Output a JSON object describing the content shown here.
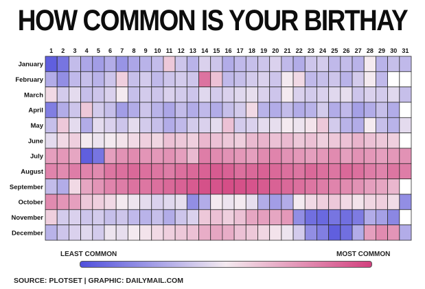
{
  "title": "HOW COMMON IS YOUR BIRTHAY",
  "legend": {
    "low_label": "LEAST COMMON",
    "high_label": "MOST COMMON"
  },
  "footer": {
    "source": "SOURCE: PLOTSET | GRAPHIC: DAILYMAIL.COM"
  },
  "colors": {
    "least": "#5050dc",
    "middle": "#f4eaf0",
    "most": "#d2407e",
    "missing": "#ffffff",
    "grid": "#2b2b2b"
  },
  "chart_data": {
    "type": "heatmap",
    "title": "HOW COMMON IS YOUR BIRTHAY",
    "x": [
      1,
      2,
      3,
      4,
      5,
      6,
      7,
      8,
      9,
      10,
      11,
      12,
      13,
      14,
      15,
      16,
      17,
      18,
      19,
      20,
      21,
      22,
      23,
      24,
      25,
      26,
      27,
      28,
      29,
      30,
      31
    ],
    "y": [
      "January",
      "February",
      "March",
      "April",
      "May",
      "June",
      "July",
      "August",
      "September",
      "October",
      "November",
      "December"
    ],
    "value_scale": "relative commonness, 0 = least common, 1 = most common",
    "values": [
      [
        0.05,
        0.12,
        0.35,
        0.28,
        0.25,
        0.3,
        0.22,
        0.28,
        0.32,
        0.35,
        0.6,
        0.38,
        0.32,
        0.42,
        0.38,
        0.3,
        0.34,
        0.36,
        0.38,
        0.42,
        0.34,
        0.3,
        0.38,
        0.4,
        0.34,
        0.35,
        0.32,
        0.5,
        0.32,
        0.36,
        0.34
      ],
      [
        0.3,
        0.2,
        0.34,
        0.36,
        0.32,
        0.38,
        0.58,
        0.36,
        0.4,
        0.34,
        0.38,
        0.4,
        0.38,
        0.85,
        0.62,
        0.34,
        0.36,
        0.4,
        0.42,
        0.38,
        0.5,
        0.55,
        0.34,
        0.36,
        0.38,
        0.32,
        0.4,
        0.5,
        0.34,
        null,
        null
      ],
      [
        0.55,
        0.4,
        0.45,
        0.36,
        0.38,
        0.42,
        0.5,
        0.36,
        0.4,
        0.38,
        0.42,
        0.4,
        0.38,
        0.44,
        0.4,
        0.42,
        0.44,
        0.46,
        0.42,
        0.38,
        0.5,
        0.42,
        0.4,
        0.42,
        0.44,
        0.46,
        0.38,
        0.42,
        0.4,
        0.44,
        0.36
      ],
      [
        0.15,
        0.3,
        0.38,
        0.6,
        0.4,
        0.36,
        0.25,
        0.3,
        0.38,
        0.32,
        0.28,
        0.35,
        0.3,
        0.34,
        0.3,
        0.36,
        0.4,
        0.55,
        0.32,
        0.3,
        0.35,
        0.3,
        0.32,
        0.4,
        0.3,
        0.34,
        0.26,
        0.3,
        0.36,
        0.3,
        null
      ],
      [
        0.36,
        0.6,
        0.45,
        0.3,
        0.45,
        0.42,
        0.38,
        0.45,
        0.4,
        0.36,
        0.3,
        0.34,
        0.4,
        0.42,
        0.45,
        0.62,
        0.4,
        0.42,
        0.45,
        0.46,
        0.5,
        0.48,
        0.52,
        0.6,
        0.4,
        0.32,
        0.3,
        0.5,
        0.36,
        0.32,
        0.45
      ],
      [
        0.45,
        0.55,
        0.58,
        0.5,
        0.48,
        0.5,
        0.52,
        0.55,
        0.58,
        0.56,
        0.62,
        0.6,
        0.58,
        0.65,
        0.62,
        0.6,
        0.58,
        0.64,
        0.66,
        0.62,
        0.64,
        0.6,
        0.62,
        0.58,
        0.6,
        0.62,
        0.66,
        0.62,
        0.6,
        0.58,
        null
      ],
      [
        0.72,
        0.74,
        0.7,
        0.05,
        0.12,
        0.72,
        0.76,
        0.78,
        0.75,
        0.74,
        0.76,
        0.72,
        0.64,
        0.82,
        0.78,
        0.76,
        0.74,
        0.72,
        0.78,
        0.8,
        0.76,
        0.74,
        0.72,
        0.74,
        0.78,
        0.72,
        0.76,
        0.74,
        0.72,
        0.74,
        0.76
      ],
      [
        0.8,
        0.78,
        0.82,
        0.8,
        0.78,
        0.84,
        0.86,
        0.88,
        0.86,
        0.84,
        0.82,
        0.86,
        0.88,
        0.9,
        0.92,
        0.9,
        0.86,
        0.88,
        0.9,
        0.88,
        0.86,
        0.84,
        0.88,
        0.86,
        0.84,
        0.88,
        0.86,
        0.82,
        0.8,
        0.84,
        0.82
      ],
      [
        0.35,
        0.3,
        0.55,
        0.7,
        0.75,
        0.8,
        0.82,
        0.85,
        0.84,
        0.86,
        0.88,
        0.9,
        0.92,
        0.95,
        0.94,
        0.96,
        0.95,
        0.94,
        0.92,
        0.9,
        0.88,
        0.86,
        0.84,
        0.82,
        0.8,
        0.78,
        0.76,
        0.72,
        0.7,
        0.65,
        null
      ],
      [
        0.78,
        0.75,
        0.72,
        0.6,
        0.58,
        0.55,
        0.5,
        0.48,
        0.45,
        0.42,
        0.44,
        0.46,
        0.2,
        0.3,
        0.5,
        0.48,
        0.5,
        0.46,
        0.3,
        0.25,
        0.3,
        0.5,
        0.55,
        0.58,
        0.6,
        0.55,
        0.52,
        0.56,
        0.58,
        0.54,
        0.2
      ],
      [
        0.58,
        0.4,
        0.42,
        0.38,
        0.4,
        0.36,
        0.38,
        0.34,
        0.32,
        0.36,
        0.3,
        0.38,
        0.42,
        0.6,
        0.62,
        0.58,
        0.62,
        0.7,
        0.72,
        0.7,
        0.74,
        0.2,
        0.1,
        0.08,
        0.12,
        0.1,
        0.14,
        0.3,
        0.26,
        0.18,
        null
      ],
      [
        0.32,
        0.38,
        0.42,
        0.44,
        0.4,
        0.48,
        0.46,
        0.5,
        0.52,
        0.55,
        0.58,
        0.6,
        0.62,
        0.68,
        0.7,
        0.68,
        0.62,
        0.6,
        0.56,
        0.52,
        0.48,
        0.4,
        0.2,
        0.15,
        0.05,
        0.1,
        0.3,
        0.72,
        0.78,
        0.75,
        0.3
      ]
    ]
  }
}
